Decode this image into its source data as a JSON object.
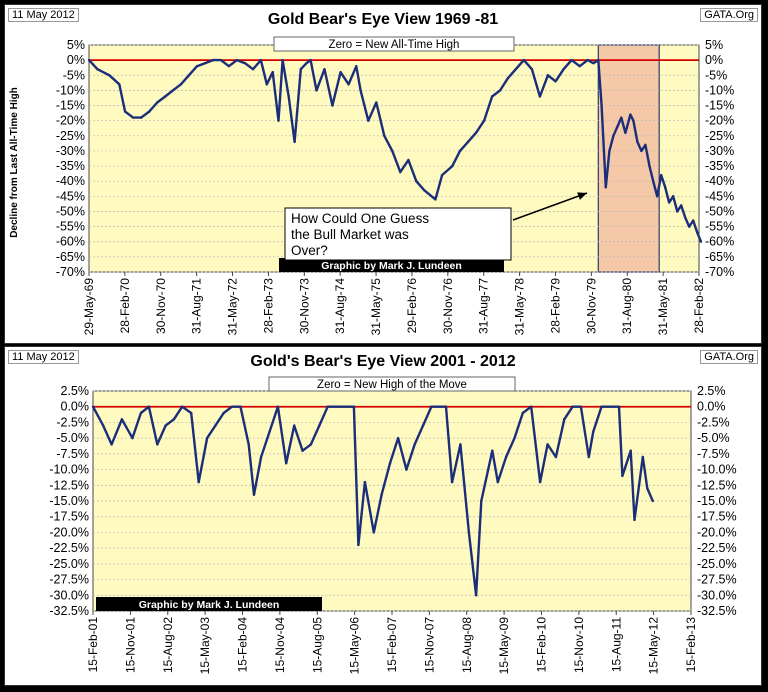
{
  "chart_data": [
    {
      "type": "line",
      "date_left": "11 May 2012",
      "title": "Gold Bear's Eye View 1969 -81",
      "source": "GATA.Org",
      "ylabel": "Decline from Last All-Time High",
      "legend_box": "Zero = New All-Time High",
      "credit": "Graphic by Mark J. Lundeen",
      "annotation": "How Could One Guess the Bull Market was Over?",
      "annotation_lines": [
        "How Could One Guess",
        "the Bull Market was",
        "Over?"
      ],
      "ylim": [
        -70,
        5
      ],
      "y_ticks": [
        "5%",
        "0%",
        "-5%",
        "-10%",
        "-15%",
        "-20%",
        "-25%",
        "-30%",
        "-35%",
        "-40%",
        "-45%",
        "-50%",
        "-55%",
        "-60%",
        "-65%",
        "-70%"
      ],
      "x_ticks": [
        "29-May-69",
        "28-Feb-70",
        "30-Nov-70",
        "31-Aug-71",
        "31-May-72",
        "28-Feb-73",
        "30-Nov-73",
        "31-Aug-74",
        "31-May-75",
        "29-Feb-76",
        "30-Nov-76",
        "31-Aug-77",
        "31-May-78",
        "28-Feb-79",
        "30-Nov-79",
        "31-Aug-80",
        "31-May-81",
        "28-Feb-82"
      ],
      "shaded_region": [
        "1980-01-21",
        "1981-04-30"
      ],
      "colors": {
        "plot_bg": "#fffac0",
        "line": "#1a2e7a",
        "zero_line": "#d40000",
        "shade": "#f5c9a7"
      },
      "series": [
        {
          "x": [
            "1969-05-29",
            "1969-08-01",
            "1969-11-01",
            "1970-01-15",
            "1970-03-01",
            "1970-05-01",
            "1970-07-01",
            "1970-09-01",
            "1970-11-01",
            "1971-01-01",
            "1971-03-01",
            "1971-05-01",
            "1971-07-01",
            "1971-09-01",
            "1971-11-01",
            "1972-01-01",
            "1972-03-01",
            "1972-05-01",
            "1972-07-01",
            "1972-09-01",
            "1972-11-01",
            "1973-01-01",
            "1973-02-15",
            "1973-04-01",
            "1973-05-15",
            "1973-06-15",
            "1973-08-01",
            "1973-09-15",
            "1973-11-01",
            "1973-12-15",
            "1974-01-15",
            "1974-03-01",
            "1974-05-01",
            "1974-07-01",
            "1974-09-01",
            "1974-11-01",
            "1974-12-30",
            "1975-02-01",
            "1975-04-01",
            "1975-06-01",
            "1975-08-01",
            "1975-10-01",
            "1975-12-01",
            "1976-02-01",
            "1976-04-01",
            "1976-06-01",
            "1976-08-25",
            "1976-10-15",
            "1977-01-01",
            "1977-03-01",
            "1977-05-01",
            "1977-07-01",
            "1977-09-01",
            "1977-11-01",
            "1978-01-01",
            "1978-03-01",
            "1978-05-01",
            "1978-07-01",
            "1978-09-01",
            "1978-11-01",
            "1979-01-01",
            "1979-03-01",
            "1979-05-01",
            "1979-07-01",
            "1979-09-01",
            "1979-11-01",
            "1979-12-15",
            "1980-01-21",
            "1980-02-15",
            "1980-03-18",
            "1980-04-15",
            "1980-05-15",
            "1980-06-15",
            "1980-07-15",
            "1980-08-15",
            "1980-09-22",
            "1980-10-15",
            "1980-11-15",
            "1980-12-15",
            "1981-01-15",
            "1981-02-15",
            "1981-03-15",
            "1981-04-15",
            "1981-05-15",
            "1981-06-15",
            "1981-07-15",
            "1981-08-15",
            "1981-09-15",
            "1981-10-15",
            "1981-11-15",
            "1981-12-15",
            "1982-01-15",
            "1982-02-15",
            "1982-03-15"
          ],
          "y": [
            0,
            -3,
            -5,
            -8,
            -17,
            -19,
            -19,
            -17,
            -14,
            -12,
            -10,
            -8,
            -5,
            -2,
            -1,
            0,
            0,
            -2,
            0,
            -1,
            -3,
            0,
            -8,
            -4,
            -20,
            0,
            -12,
            -27,
            -3,
            -1,
            0,
            -10,
            -3,
            -15,
            -4,
            -8,
            -2,
            -10,
            -20,
            -14,
            -25,
            -30,
            -37,
            -33,
            -40,
            -43,
            -46,
            -38,
            -35,
            -30,
            -27,
            -24,
            -20,
            -12,
            -10,
            -6,
            -3,
            0,
            -3,
            -12,
            -5,
            -7,
            -3,
            0,
            -2,
            0,
            -1,
            0,
            -15,
            -42,
            -30,
            -25,
            -22,
            -19,
            -24,
            -18,
            -20,
            -27,
            -30,
            -28,
            -35,
            -40,
            -45,
            -38,
            -42,
            -47,
            -45,
            -50,
            -48,
            -52,
            -55,
            -53,
            -57,
            -60
          ]
        }
      ]
    },
    {
      "type": "line",
      "date_left": "11 May 2012",
      "title": "Gold's Bear's Eye View 2001 - 2012",
      "source": "GATA.Org",
      "legend_box": "Zero = New High of the Move",
      "credit": "Graphic by Mark J. Lundeen",
      "ylim": [
        -32.5,
        2.5
      ],
      "y_ticks": [
        "2.5%",
        "0.0%",
        "-2.5%",
        "-5.0%",
        "-7.5%",
        "-10.0%",
        "-12.5%",
        "-15.0%",
        "-17.5%",
        "-20.0%",
        "-22.5%",
        "-25.0%",
        "-27.5%",
        "-30.0%",
        "-32.5%"
      ],
      "x_ticks": [
        "15-Feb-01",
        "15-Nov-01",
        "15-Aug-02",
        "15-May-03",
        "15-Feb-04",
        "15-Nov-04",
        "15-Aug-05",
        "15-May-06",
        "15-Feb-07",
        "15-Nov-07",
        "15-Aug-08",
        "15-May-09",
        "15-Feb-10",
        "15-Nov-10",
        "15-Aug-11",
        "15-May-12",
        "15-Feb-13"
      ],
      "colors": {
        "plot_bg": "#fffac0",
        "line": "#1a2e7a",
        "zero_line": "#d40000"
      },
      "series": [
        {
          "x": [
            "2001-02-15",
            "2001-05-01",
            "2001-07-01",
            "2001-09-15",
            "2001-12-01",
            "2002-02-01",
            "2002-04-01",
            "2002-06-01",
            "2002-08-01",
            "2002-10-01",
            "2002-12-01",
            "2003-02-05",
            "2003-04-01",
            "2003-06-01",
            "2003-08-01",
            "2003-10-01",
            "2003-12-01",
            "2004-02-01",
            "2004-04-01",
            "2004-05-10",
            "2004-07-01",
            "2004-09-01",
            "2004-11-01",
            "2005-01-01",
            "2005-03-01",
            "2005-05-01",
            "2005-07-01",
            "2005-09-01",
            "2005-11-01",
            "2006-01-01",
            "2006-03-01",
            "2006-05-12",
            "2006-06-14",
            "2006-08-01",
            "2006-10-05",
            "2006-12-01",
            "2007-02-01",
            "2007-04-01",
            "2007-06-01",
            "2007-08-01",
            "2007-10-01",
            "2007-12-01",
            "2008-02-01",
            "2008-03-17",
            "2008-05-01",
            "2008-07-01",
            "2008-09-01",
            "2008-10-24",
            "2008-12-01",
            "2009-02-20",
            "2009-04-01",
            "2009-06-01",
            "2009-08-01",
            "2009-10-01",
            "2009-12-02",
            "2010-02-05",
            "2010-04-01",
            "2010-06-01",
            "2010-08-01",
            "2010-10-01",
            "2010-12-01",
            "2011-01-28",
            "2011-03-01",
            "2011-05-01",
            "2011-07-01",
            "2011-09-06",
            "2011-10-01",
            "2011-12-01",
            "2011-12-29",
            "2012-02-28",
            "2012-04-01",
            "2012-05-11"
          ],
          "y": [
            0,
            -3,
            -6,
            -2,
            -5,
            -1,
            0,
            -6,
            -3,
            -2,
            0,
            -1,
            -12,
            -5,
            -3,
            -1,
            0,
            0,
            -6,
            -14,
            -8,
            -4,
            0,
            -9,
            -3,
            -7,
            -6,
            -3,
            0,
            0,
            0,
            0,
            -22,
            -12,
            -20,
            -14,
            -9,
            -5,
            -10,
            -6,
            -3,
            0,
            0,
            0,
            -12,
            -6,
            -20,
            -30,
            -15,
            -7,
            -12,
            -8,
            -5,
            -1,
            0,
            -12,
            -6,
            -8,
            -2,
            0,
            0,
            -8,
            -4,
            0,
            0,
            0,
            -11,
            -7,
            -18,
            -8,
            -13,
            -15
          ]
        }
      ]
    }
  ]
}
